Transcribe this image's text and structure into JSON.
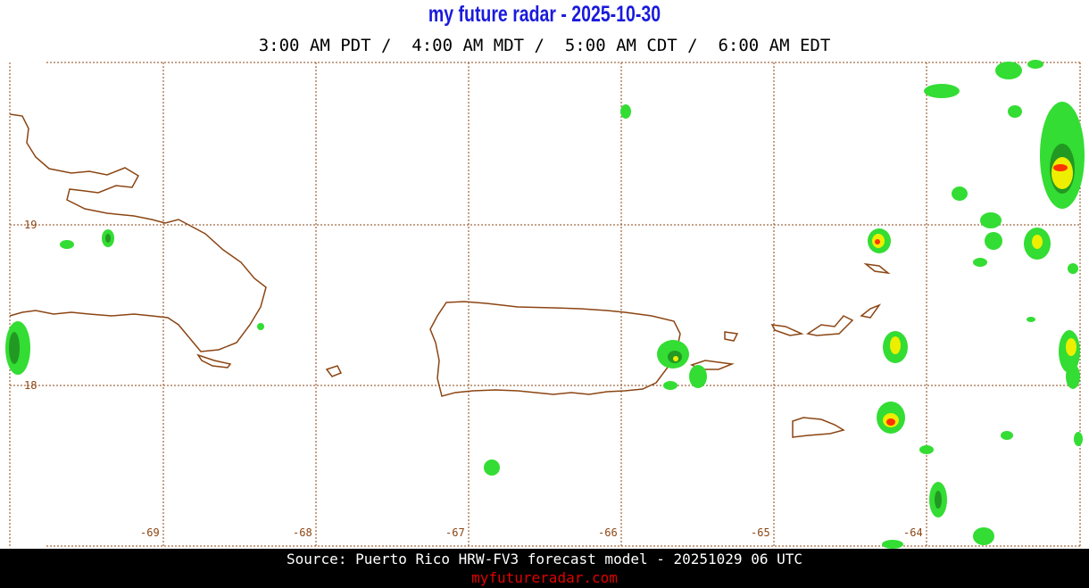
{
  "header": {
    "title": "my future radar - 2025-10-30",
    "times": "3:00 AM PDT /  4:00 AM MDT /  5:00 AM CDT /  6:00 AM EDT"
  },
  "map": {
    "lat_labels": [
      19,
      18
    ],
    "lon_labels": [
      -69,
      -68,
      -67,
      -66,
      -65,
      -64
    ]
  },
  "footer": {
    "source": "Source: Puerto Rico HRW-FV3 forecast model - 20251029 06 UTC",
    "site": "myfutureradar.com"
  }
}
